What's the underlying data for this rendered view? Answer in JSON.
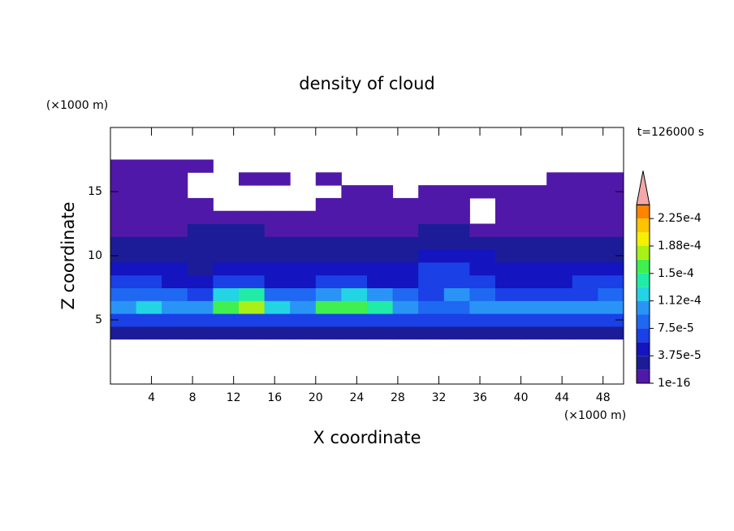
{
  "chart_data": {
    "type": "contour",
    "title": "density of cloud",
    "xlabel": "X coordinate",
    "ylabel": "Z coordinate",
    "xunit": "(×1000 m)",
    "yunit": "(×1000 m)",
    "annotation": "t=126000 s",
    "xlim": [
      0,
      50
    ],
    "ylim": [
      0,
      20
    ],
    "xticks": [
      4,
      8,
      12,
      16,
      20,
      24,
      28,
      32,
      36,
      40,
      44,
      48
    ],
    "yticks": [
      5,
      10,
      15
    ],
    "x_edges": [
      0,
      2.5,
      5,
      7.5,
      10,
      12.5,
      15,
      17.5,
      20,
      22.5,
      25,
      27.5,
      30,
      32.5,
      35,
      37.5,
      40,
      42.5,
      45,
      47.5,
      50
    ],
    "z_edges": [
      3.5,
      4.5,
      5.5,
      6.5,
      7.5,
      8.5,
      9.5,
      10.5,
      11.5,
      12.5,
      13.5,
      14.5,
      15.5,
      16.5,
      17.5
    ],
    "values": [
      [
        2e-05,
        2e-05,
        2e-05,
        2e-05,
        2e-05,
        2e-05,
        2e-05,
        2e-05,
        2e-05,
        2e-05,
        2e-05,
        2e-05,
        2e-05,
        2e-05,
        2e-05,
        2e-05,
        2e-05,
        2e-05,
        2e-05,
        2e-05
      ],
      [
        6e-05,
        7e-05,
        6e-05,
        7e-05,
        6e-05,
        6e-05,
        7e-05,
        7e-05,
        6e-05,
        7e-05,
        7e-05,
        6e-05,
        6e-05,
        6e-05,
        6e-05,
        7e-05,
        6e-05,
        6e-05,
        7e-05,
        7e-05
      ],
      [
        0.00011,
        0.00012,
        0.00011,
        0.0001,
        0.00016,
        0.00017,
        0.00012,
        0.00011,
        0.00015,
        0.00016,
        0.00014,
        0.0001,
        8e-05,
        9e-05,
        0.00011,
        0.0001,
        0.00011,
        0.0001,
        0.00011,
        0.00011
      ],
      [
        8e-05,
        9e-05,
        8e-05,
        7e-05,
        0.00013,
        0.00014,
        9e-05,
        8e-05,
        0.00011,
        0.00012,
        0.0001,
        8e-05,
        7e-05,
        0.0001,
        8e-05,
        7e-05,
        7e-05,
        6e-05,
        7e-05,
        8e-05
      ],
      [
        6e-05,
        6e-05,
        5e-05,
        5e-05,
        6e-05,
        6e-05,
        5e-05,
        5e-05,
        6e-05,
        6e-05,
        5e-05,
        5e-05,
        6e-05,
        7e-05,
        6e-05,
        5e-05,
        5e-05,
        5e-05,
        6e-05,
        6e-05
      ],
      [
        4e-05,
        4e-05,
        4e-05,
        3e-05,
        4e-05,
        4e-05,
        4e-05,
        4e-05,
        4e-05,
        4e-05,
        4e-05,
        4e-05,
        6e-05,
        7e-05,
        5e-05,
        4e-05,
        4e-05,
        4e-05,
        4e-05,
        4e-05
      ],
      [
        3e-05,
        2e-05,
        3e-05,
        3e-05,
        3e-05,
        3e-05,
        3e-05,
        3e-05,
        3e-05,
        3e-05,
        3e-05,
        3e-05,
        4e-05,
        5e-05,
        4e-05,
        3e-05,
        3e-05,
        3e-05,
        3e-05,
        3e-05
      ],
      [
        2e-05,
        2e-05,
        2e-05,
        2e-05,
        2e-05,
        3e-05,
        2e-05,
        2e-05,
        2e-05,
        2e-05,
        2e-05,
        2e-05,
        3e-05,
        3e-05,
        2e-05,
        2e-05,
        2e-05,
        2e-05,
        2e-05,
        2e-05
      ],
      [
        1e-05,
        1e-05,
        1e-05,
        2e-05,
        2e-05,
        2e-05,
        1e-05,
        1e-05,
        1e-05,
        1e-05,
        1e-05,
        1e-05,
        2e-05,
        2e-05,
        1e-05,
        1e-05,
        1e-05,
        1e-05,
        1e-05,
        1e-05
      ],
      [
        1e-05,
        1e-05,
        1e-05,
        1e-05,
        1e-05,
        1e-05,
        1e-05,
        1e-05,
        1e-05,
        1e-05,
        1e-05,
        1e-05,
        1e-05,
        1e-05,
        null,
        1e-05,
        1e-05,
        1e-05,
        1e-05,
        1e-05
      ],
      [
        1e-05,
        1e-05,
        1e-05,
        1e-05,
        null,
        null,
        null,
        null,
        1e-05,
        1e-05,
        1e-05,
        1e-05,
        1e-05,
        1e-05,
        null,
        1e-05,
        1e-05,
        1e-05,
        1e-05,
        1e-05
      ],
      [
        1e-05,
        1e-05,
        1e-05,
        null,
        null,
        null,
        null,
        null,
        null,
        1e-05,
        1e-05,
        null,
        1e-05,
        1e-05,
        1e-05,
        1e-05,
        1e-05,
        1e-05,
        1e-05,
        1e-05
      ],
      [
        1e-05,
        1e-05,
        1e-05,
        null,
        null,
        1e-05,
        1e-05,
        null,
        1e-05,
        null,
        null,
        null,
        null,
        null,
        null,
        null,
        null,
        1e-05,
        1e-05,
        1e-05
      ],
      [
        1e-05,
        1e-05,
        1e-05,
        1e-05,
        null,
        null,
        null,
        null,
        null,
        null,
        null,
        null,
        null,
        null,
        null,
        null,
        null,
        null,
        null,
        null
      ]
    ],
    "levels": [
      1e-16,
      1.875e-05,
      3.75e-05,
      5.625e-05,
      7.5e-05,
      9.375e-05,
      0.0001125,
      0.00013125,
      0.00015,
      0.00016875,
      0.0001875,
      0.00020625,
      0.000225,
      0.00024375
    ],
    "colors": [
      "#5018a8",
      "#1c1c98",
      "#1414c0",
      "#1a40e6",
      "#1e68f2",
      "#2a94f6",
      "#22d4e4",
      "#20eca8",
      "#40f050",
      "#a8f018",
      "#f4f000",
      "#ffc400",
      "#ff8400"
    ],
    "extend_color": "#f4a8a8",
    "colorbar_ticks": [
      {
        "value": 1e-16,
        "label": "1e-16"
      },
      {
        "value": 3.75e-05,
        "label": "3.75e-5"
      },
      {
        "value": 7.5e-05,
        "label": "7.5e-5"
      },
      {
        "value": 0.0001125,
        "label": "1.12e-4"
      },
      {
        "value": 0.00015,
        "label": "1.5e-4"
      },
      {
        "value": 0.0001875,
        "label": "1.88e-4"
      },
      {
        "value": 0.000225,
        "label": "2.25e-4"
      }
    ]
  }
}
